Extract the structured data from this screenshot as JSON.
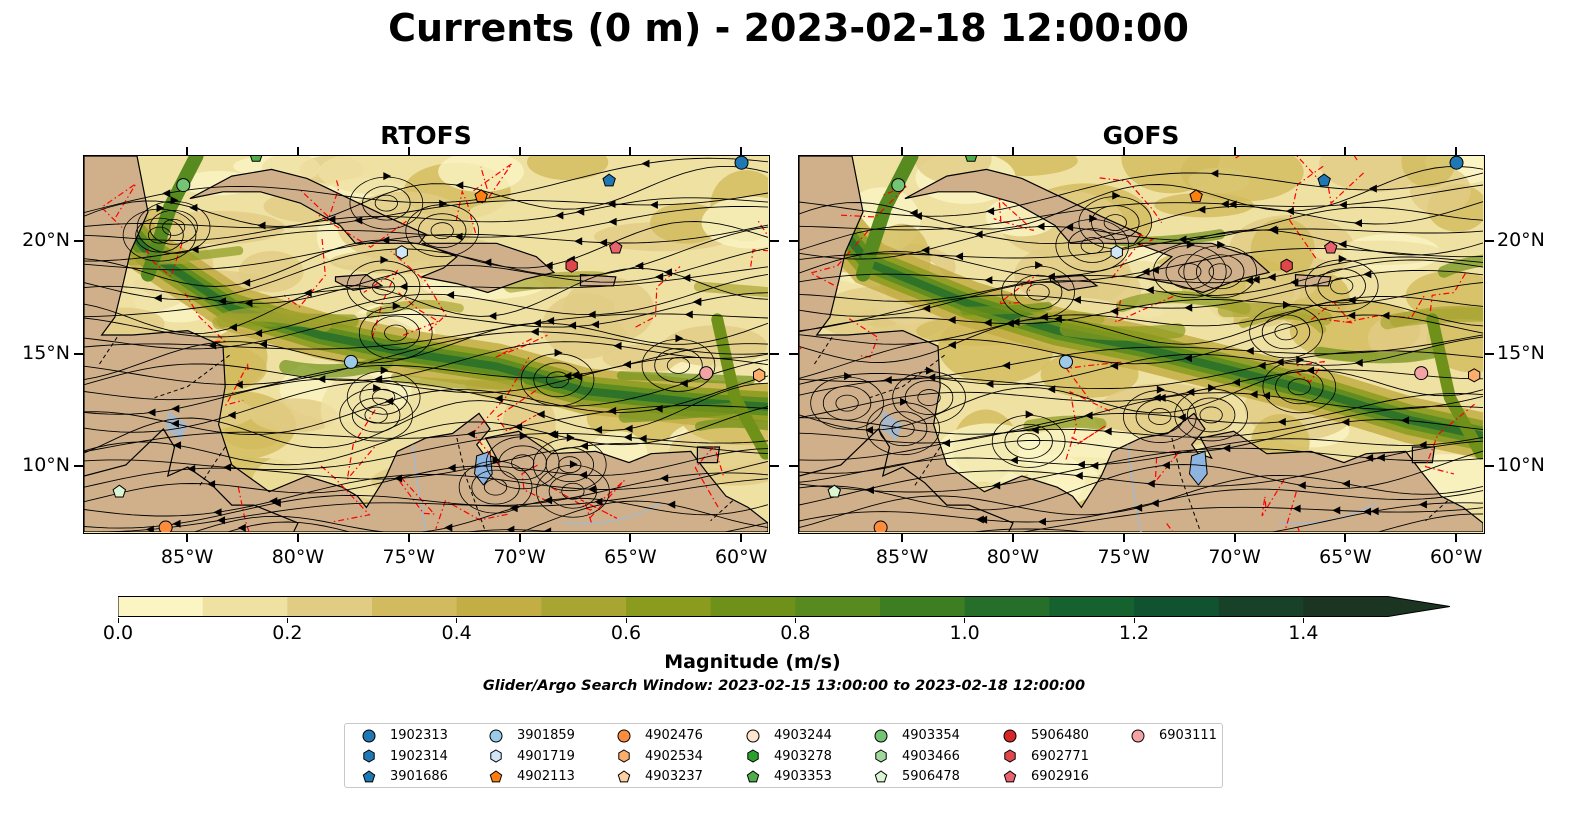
{
  "title": "Currents (0 m) - 2023-02-18 12:00:00",
  "panels": [
    {
      "title": "RTOFS",
      "lon_ticks": [
        "85°W",
        "80°W",
        "75°W",
        "70°W",
        "65°W",
        "60°W"
      ],
      "lat_ticks": [
        "20°N",
        "15°N",
        "10°N"
      ]
    },
    {
      "title": "GOFS",
      "lon_ticks": [
        "85°W",
        "80°W",
        "75°W",
        "70°W",
        "65°W",
        "60°W"
      ],
      "lat_ticks": [
        "20°N",
        "15°N",
        "10°N"
      ]
    }
  ],
  "map_extent": {
    "lon_min": -89.7,
    "lon_max": -58.7,
    "lat_min": 7.0,
    "lat_max": 23.8
  },
  "colorbar": {
    "label": "Magnitude (m/s)",
    "ticks": [
      "0.0",
      "0.2",
      "0.4",
      "0.6",
      "0.8",
      "1.0",
      "1.2",
      "1.4"
    ],
    "min": 0.0,
    "max": 1.5,
    "step": 0.1,
    "extend": "max",
    "colors": [
      "#fbf5c4",
      "#efe1a2",
      "#e1cc84",
      "#d2bb5e",
      "#c3ad45",
      "#a9a533",
      "#8a9b1e",
      "#6f911a",
      "#578a1f",
      "#3e7e22",
      "#266f2a",
      "#15622e",
      "#115230",
      "#174229",
      "#1c3422"
    ]
  },
  "search_window": "Glider/Argo Search Window: 2023-02-15 13:00:00 to 2023-02-18 12:00:00",
  "colors": {
    "land": "#cfb08a",
    "ocean_low": "#f6ebb0",
    "eez": "#ff0000",
    "lake": "#8eb4e0"
  },
  "legend": [
    {
      "id": "1902313",
      "marker": "circle",
      "color": "#1f77b4"
    },
    {
      "id": "1902314",
      "marker": "hexagon",
      "color": "#1f77b4"
    },
    {
      "id": "3901686",
      "marker": "pentagon",
      "color": "#1f77b4"
    },
    {
      "id": "3901859",
      "marker": "circle",
      "color": "#9ecae9"
    },
    {
      "id": "4901719",
      "marker": "hexagon",
      "color": "#cfe7f6"
    },
    {
      "id": "4902113",
      "marker": "pentagon",
      "color": "#ff7f0e"
    },
    {
      "id": "4902476",
      "marker": "circle",
      "color": "#fd8d3c"
    },
    {
      "id": "4902534",
      "marker": "hexagon",
      "color": "#fdae6b"
    },
    {
      "id": "4903237",
      "marker": "pentagon",
      "color": "#fdd0a2"
    },
    {
      "id": "4903244",
      "marker": "circle",
      "color": "#fde5d0"
    },
    {
      "id": "4903278",
      "marker": "hexagon",
      "color": "#2ca02c"
    },
    {
      "id": "4903353",
      "marker": "pentagon",
      "color": "#4daf4a"
    },
    {
      "id": "4903354",
      "marker": "circle",
      "color": "#74c476"
    },
    {
      "id": "4903466",
      "marker": "hexagon",
      "color": "#a1d99b"
    },
    {
      "id": "5906478",
      "marker": "pentagon",
      "color": "#d9f6d3"
    },
    {
      "id": "5906480",
      "marker": "circle",
      "color": "#d62728"
    },
    {
      "id": "6902771",
      "marker": "hexagon",
      "color": "#e0474b"
    },
    {
      "id": "6902916",
      "marker": "pentagon",
      "color": "#e7646e"
    },
    {
      "id": "6903111",
      "marker": "circle",
      "color": "#f4a3a5"
    }
  ],
  "floats": [
    {
      "id": "1902313",
      "lon": -59.9,
      "lat": 23.5
    },
    {
      "id": "3901686",
      "lon": -65.9,
      "lat": 22.7
    },
    {
      "id": "4902113",
      "lon": -71.7,
      "lat": 22.0
    },
    {
      "id": "4903353",
      "lon": -81.9,
      "lat": 23.8
    },
    {
      "id": "4903354",
      "lon": -85.2,
      "lat": 22.5
    },
    {
      "id": "4901719",
      "lon": -75.3,
      "lat": 19.5
    },
    {
      "id": "6902916",
      "lon": -65.6,
      "lat": 19.7
    },
    {
      "id": "6902771",
      "lon": -67.6,
      "lat": 18.9
    },
    {
      "id": "3901859",
      "lon": -77.6,
      "lat": 14.6
    },
    {
      "id": "6903111",
      "lon": -61.5,
      "lat": 14.1
    },
    {
      "id": "4902534",
      "lon": -59.1,
      "lat": 14.0
    },
    {
      "id": "5906478",
      "lon": -88.1,
      "lat": 8.8
    },
    {
      "id": "4902476",
      "lon": -86.0,
      "lat": 7.2
    }
  ]
}
